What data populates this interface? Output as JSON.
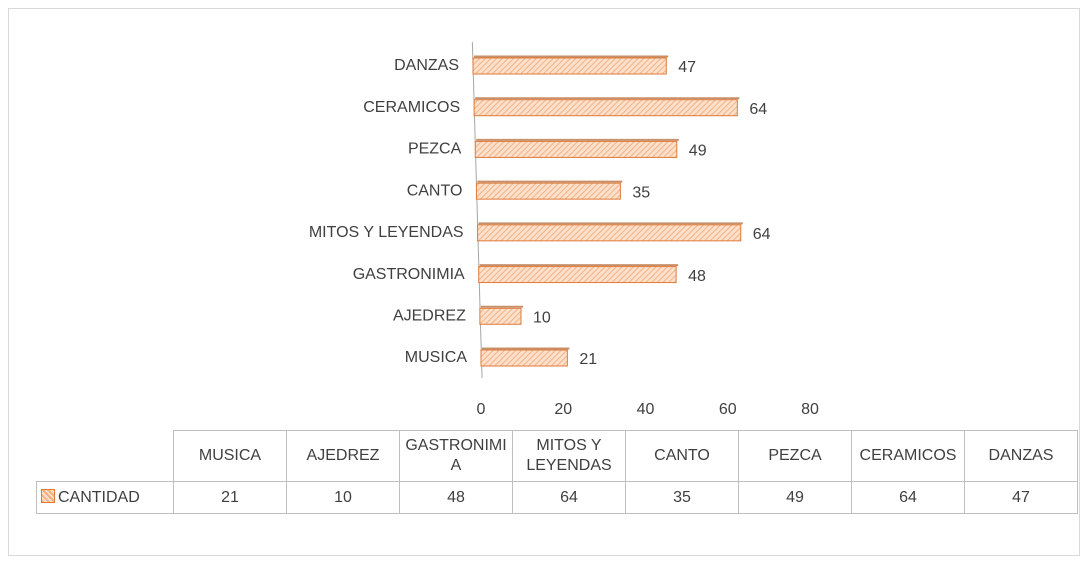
{
  "chart_data": {
    "type": "bar",
    "orientation": "horizontal",
    "categories": [
      "MUSICA",
      "AJEDREZ",
      "GASTRONIMIA",
      "MITOS Y LEYENDAS",
      "CANTO",
      "PEZCA",
      "CERAMICOS",
      "DANZAS"
    ],
    "series": [
      {
        "name": "CANTIDAD",
        "color": "#f4b183",
        "values": [
          21,
          10,
          48,
          64,
          35,
          49,
          64,
          47
        ]
      }
    ],
    "xlim": [
      0,
      80
    ],
    "xticks": [
      0,
      20,
      40,
      60,
      80
    ],
    "data_table": true
  }
}
